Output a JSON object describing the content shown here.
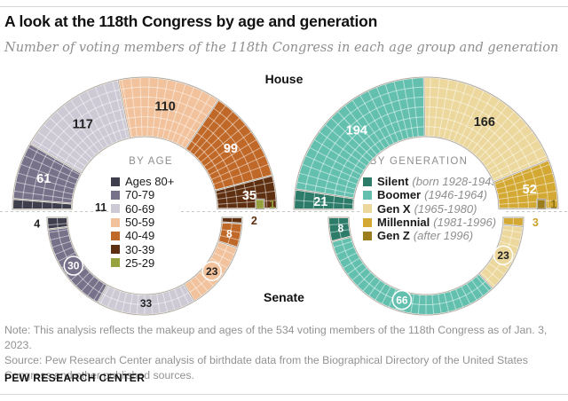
{
  "header": {
    "title": "A look at the 118th Congress by age and generation",
    "subtitle": "Number of voting members of the 118th Congress in each age group and generation"
  },
  "chamber_labels": {
    "house": "House",
    "senate": "Senate"
  },
  "footer": {
    "note": "Note: This analysis reflects the makeup and ages of the 534 voting members of the 118th Congress as of Jan. 3, 2023.",
    "source": "Source: Pew Research Center analysis of birthdate data from the Biographical Directory of the United States Congress and other published sources.",
    "brand": "PEW RESEARCH CENTER"
  },
  "chart_data": [
    {
      "type": "half-donut",
      "group_title": "BY AGE",
      "legend_position": "center-hole",
      "legend": [
        {
          "label": "Ages 80+",
          "color": "#3f3e4d"
        },
        {
          "label": "70-79",
          "color": "#77718a"
        },
        {
          "label": "60-69",
          "color": "#cdcad6"
        },
        {
          "label": "50-59",
          "color": "#f1c29c"
        },
        {
          "label": "40-49",
          "color": "#c06827"
        },
        {
          "label": "30-39",
          "color": "#5e2f10"
        },
        {
          "label": "25-29",
          "color": "#97a23f"
        }
      ],
      "house": [
        {
          "category": "Ages 80+",
          "value": 11,
          "label_mode": "hole",
          "label_color": "#222222"
        },
        {
          "category": "70-79",
          "value": 61,
          "label_mode": "mid",
          "label_color": "#ffffff"
        },
        {
          "category": "60-69",
          "value": 117,
          "label_mode": "mid",
          "label_color": "#222222"
        },
        {
          "category": "50-59",
          "value": 110,
          "label_mode": "mid",
          "label_color": "#222222"
        },
        {
          "category": "40-49",
          "value": 99,
          "label_mode": "mid",
          "label_color": "#ffffff"
        },
        {
          "category": "30-39",
          "value": 35,
          "label_mode": "mid",
          "label_color": "#ffffff"
        },
        {
          "category": "25-29",
          "value": 1,
          "label_mode": "square",
          "label_color": "#97a23f"
        }
      ],
      "senate": [
        {
          "category": "Ages 80+",
          "value": 4,
          "label_mode": "out",
          "label_color": "#222222"
        },
        {
          "category": "70-79",
          "value": 30,
          "label_mode": "badge",
          "label_color": "#ffffff"
        },
        {
          "category": "60-69",
          "value": 33,
          "label_mode": "mid",
          "label_color": "#222222"
        },
        {
          "category": "50-59",
          "value": 23,
          "label_mode": "badge",
          "label_color": "#222222"
        },
        {
          "category": "40-49",
          "value": 8,
          "label_mode": "mid",
          "label_color": "#ffffff"
        },
        {
          "category": "30-39",
          "value": 2,
          "label_mode": "out",
          "label_color": "#5e2f10"
        }
      ]
    },
    {
      "type": "half-donut",
      "group_title": "BY GENERATION",
      "legend_position": "center-hole",
      "legend": [
        {
          "label": "Silent",
          "detail": "(born 1928-1945)",
          "color": "#2c7c69"
        },
        {
          "label": "Boomer",
          "detail": "(1946-1964)",
          "color": "#63c0af"
        },
        {
          "label": "Gen X",
          "detail": "(1965-1980)",
          "color": "#ecd89d"
        },
        {
          "label": "Millennial",
          "detail": "(1981-1996)",
          "color": "#d3a833"
        },
        {
          "label": "Gen Z",
          "detail": "(after 1996)",
          "color": "#9b7d1e"
        }
      ],
      "house": [
        {
          "category": "Silent",
          "value": 21,
          "label_mode": "mid",
          "label_color": "#ffffff"
        },
        {
          "category": "Boomer",
          "value": 194,
          "label_mode": "mid",
          "label_color": "#ffffff"
        },
        {
          "category": "Gen X",
          "value": 166,
          "label_mode": "mid",
          "label_color": "#222222"
        },
        {
          "category": "Millennial",
          "value": 52,
          "label_mode": "mid",
          "label_color": "#ffffff"
        },
        {
          "category": "Gen Z",
          "value": 1,
          "label_mode": "square",
          "label_color": "#8c7318"
        }
      ],
      "senate": [
        {
          "category": "Silent",
          "value": 8,
          "label_mode": "mid",
          "label_color": "#ffffff"
        },
        {
          "category": "Boomer",
          "value": 66,
          "label_mode": "badge",
          "label_color": "#ffffff"
        },
        {
          "category": "Gen X",
          "value": 23,
          "label_mode": "badge",
          "label_color": "#222222"
        },
        {
          "category": "Millennial",
          "value": 3,
          "label_mode": "out",
          "label_color": "#c9a227"
        }
      ]
    }
  ]
}
